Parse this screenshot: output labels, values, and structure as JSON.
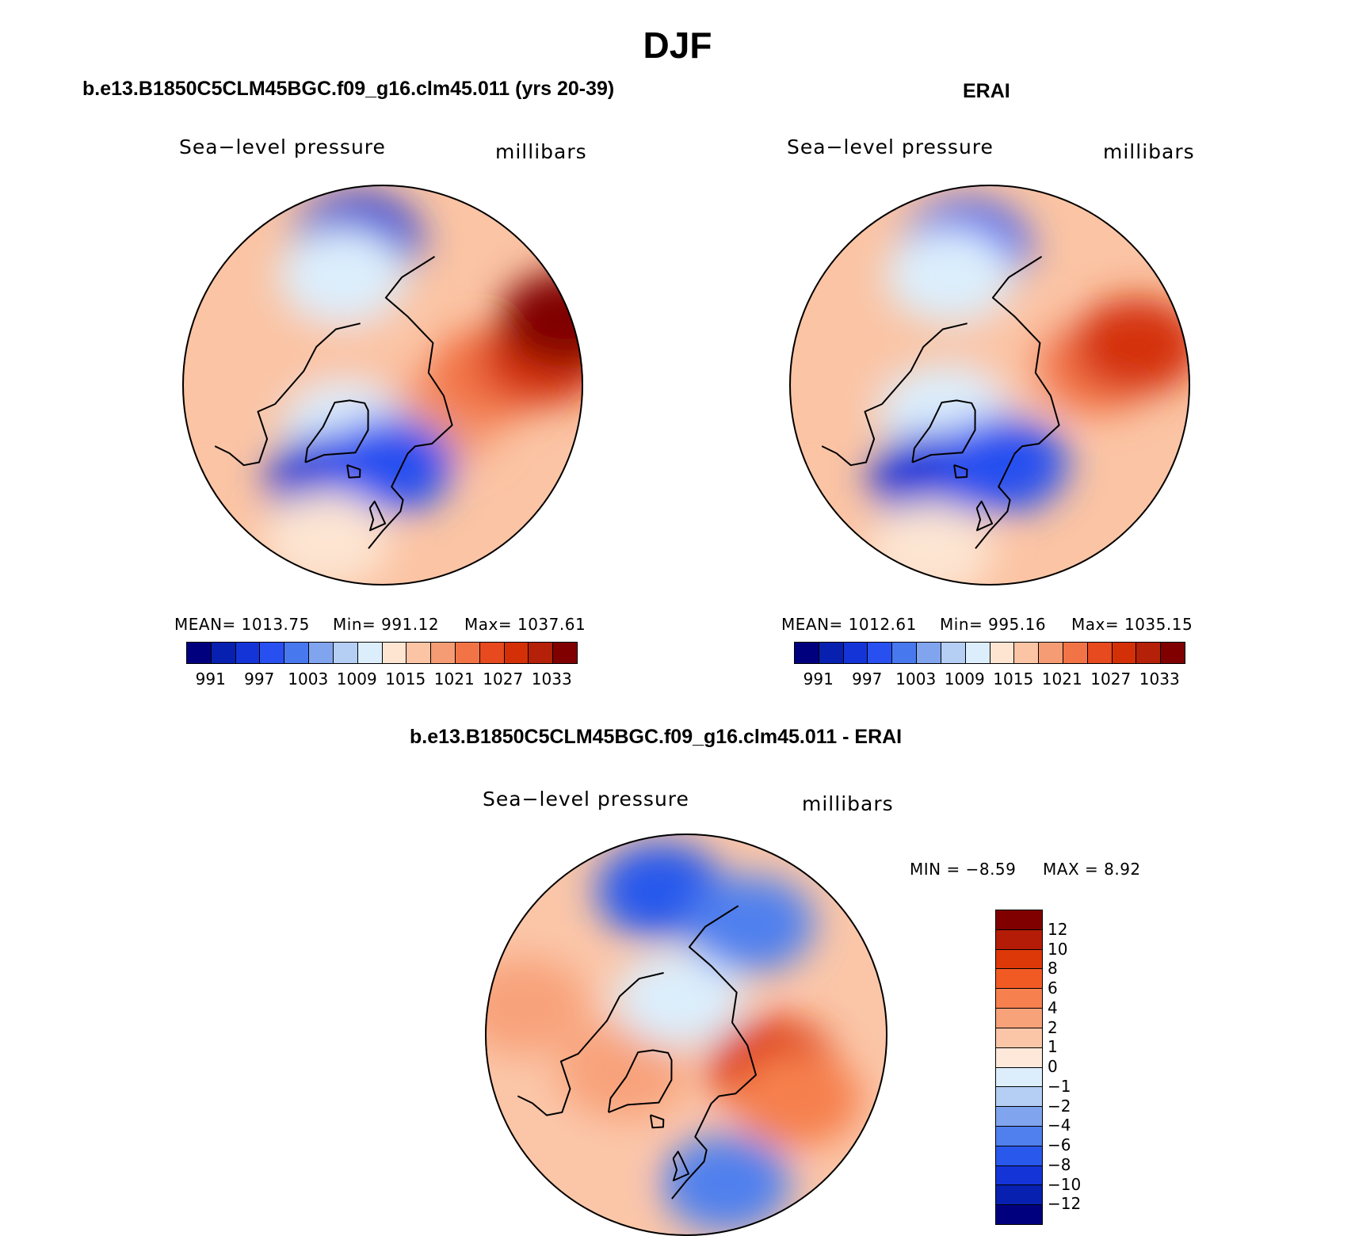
{
  "figure": {
    "title": "DJF"
  },
  "panels": {
    "model": {
      "title": "b.e13.B1850C5CLM45BGC.f09_g16.clm45.011 (yrs 20-39)",
      "variable_label": "Sea−level pressure",
      "units_label": "millibars",
      "stats": {
        "mean": "MEAN=  1013.75",
        "min": "Min=  991.12",
        "max": "Max=  1037.61"
      }
    },
    "obs": {
      "title": "ERAI",
      "variable_label": "Sea−level pressure",
      "units_label": "millibars",
      "stats": {
        "mean": "MEAN=  1012.61",
        "min": "Min=  995.16",
        "max": "Max=  1035.15"
      }
    },
    "diff": {
      "title": "b.e13.B1850C5CLM45BGC.f09_g16.clm45.011 - ERAI",
      "variable_label": "Sea−level pressure",
      "units_label": "millibars",
      "stats": {
        "min": "MIN =   −8.59",
        "max": "MAX =     8.92"
      }
    }
  },
  "colorbars": {
    "abs": {
      "colors": [
        "#00007f",
        "#0820b0",
        "#1434d8",
        "#2850f0",
        "#4878ee",
        "#80a4ee",
        "#b4cef4",
        "#dceefc",
        "#fde5d2",
        "#fbc4a4",
        "#f59c74",
        "#f27446",
        "#e64a1e",
        "#d43008",
        "#b42008",
        "#800000"
      ],
      "labels": [
        "991",
        "997",
        "1003",
        "1009",
        "1015",
        "1021",
        "1027",
        "1033"
      ]
    },
    "diff": {
      "colors": [
        "#800000",
        "#b41c08",
        "#dc3808",
        "#f25a24",
        "#f6804e",
        "#f8a27a",
        "#fbc6a8",
        "#fde8da",
        "#dceefc",
        "#b4cef4",
        "#80a4ee",
        "#5080ee",
        "#2858ec",
        "#1434d8",
        "#0820b0",
        "#00007f"
      ],
      "labels": [
        "12",
        "10",
        "8",
        "6",
        "4",
        "2",
        "1",
        "0",
        "−1",
        "−2",
        "−4",
        "−6",
        "−8",
        "−10",
        "−12"
      ]
    }
  },
  "maps": {
    "model": {
      "projection": "north-polar-stereographic",
      "features": [
        {
          "value": 1021,
          "level": 10,
          "lat": 72,
          "lon": 60
        },
        {
          "value": 1024,
          "level": 11,
          "lat": 60,
          "lon": 95
        },
        {
          "value": 1030,
          "level": 13,
          "lat": 45,
          "lon": 100
        },
        {
          "value": 1036,
          "level": 15,
          "lat": 37,
          "lon": 110
        },
        {
          "value": 1017,
          "level": 9,
          "lat": 75,
          "lon": -130
        },
        {
          "value": 1018,
          "level": 9,
          "lat": 40,
          "lon": -100
        },
        {
          "value": 1010,
          "level": 7,
          "lat": 74,
          "lon": -40
        },
        {
          "value": 997,
          "level": 2,
          "lat": 60,
          "lon": -28
        },
        {
          "value": 1000,
          "level": 3,
          "lat": 68,
          "lon": 5
        },
        {
          "value": 997,
          "level": 2,
          "lat": 50,
          "lon": -170
        },
        {
          "value": 1012,
          "level": 7,
          "lat": 58,
          "lon": -160
        },
        {
          "value": 1014,
          "level": 8,
          "lat": 45,
          "lon": -20
        }
      ]
    },
    "obs": {
      "projection": "north-polar-stereographic",
      "features": [
        {
          "value": 1018,
          "level": 9,
          "lat": 78,
          "lon": 120
        },
        {
          "value": 1024,
          "level": 11,
          "lat": 60,
          "lon": 100
        },
        {
          "value": 1030,
          "level": 13,
          "lat": 48,
          "lon": 105
        },
        {
          "value": 1018,
          "level": 9,
          "lat": 40,
          "lon": -100
        },
        {
          "value": 1012,
          "level": 7,
          "lat": 75,
          "lon": -60
        },
        {
          "value": 997,
          "level": 2,
          "lat": 60,
          "lon": -30
        },
        {
          "value": 1000,
          "level": 3,
          "lat": 68,
          "lon": 10
        },
        {
          "value": 1000,
          "level": 3,
          "lat": 52,
          "lon": -170
        },
        {
          "value": 1012,
          "level": 7,
          "lat": 58,
          "lon": -160
        },
        {
          "value": 1016,
          "level": 8,
          "lat": 42,
          "lon": -20
        }
      ]
    },
    "diff": {
      "projection": "north-polar-stereographic",
      "features": [
        {
          "value": 8,
          "level": 13,
          "lat": 65,
          "lon": 70
        },
        {
          "value": 4,
          "level": 11,
          "lat": 55,
          "lon": 60
        },
        {
          "value": 2,
          "level": 10,
          "lat": 70,
          "lon": -60
        },
        {
          "value": 3,
          "level": 10,
          "lat": 45,
          "lon": -100
        },
        {
          "value": -1,
          "level": 7,
          "lat": 80,
          "lon": -170
        },
        {
          "value": -6,
          "level": 3,
          "lat": 50,
          "lon": -170
        },
        {
          "value": -4,
          "level": 4,
          "lat": 55,
          "lon": 150
        },
        {
          "value": -5,
          "level": 4,
          "lat": 48,
          "lon": 15
        },
        {
          "value": 2,
          "level": 9,
          "lat": 40,
          "lon": -40
        }
      ]
    }
  }
}
